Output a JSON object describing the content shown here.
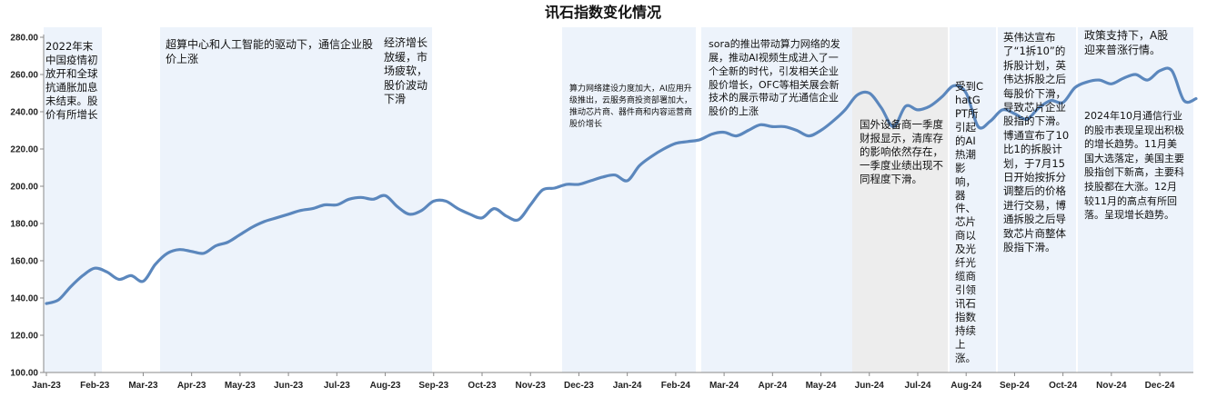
{
  "chart_data": {
    "type": "line",
    "title": "讯石指数变化情况",
    "xlabel": "",
    "ylabel": "",
    "ylim": [
      100,
      280
    ],
    "yticks": [
      "100.00",
      "120.00",
      "140.00",
      "160.00",
      "180.00",
      "200.00",
      "220.00",
      "240.00",
      "260.00",
      "280.00"
    ],
    "xticks": [
      "Jan-23",
      "Feb-23",
      "Mar-23",
      "Apr-23",
      "May-23",
      "Jun-23",
      "Jul-23",
      "Aug-23",
      "Sep-23",
      "Oct-23",
      "Nov-23",
      "Dec-23",
      "Jan-24",
      "Feb-24",
      "Mar-24",
      "Apr-24",
      "May-24",
      "Jun-24",
      "Jul-24",
      "Aug-24",
      "Sep-24",
      "Oct-24",
      "Nov-24",
      "Dec-24"
    ],
    "grid": false,
    "legend": "none",
    "series": [
      {
        "color": "#5b87bd",
        "x": [
          0,
          0.25,
          0.5,
          0.75,
          1,
          1.25,
          1.5,
          1.75,
          2,
          2.25,
          2.5,
          2.75,
          3,
          3.25,
          3.5,
          3.75,
          4,
          4.25,
          4.5,
          4.75,
          5,
          5.25,
          5.5,
          5.75,
          6,
          6.25,
          6.5,
          6.75,
          7,
          7.25,
          7.5,
          7.75,
          8,
          8.25,
          8.5,
          8.75,
          9,
          9.25,
          9.5,
          9.75,
          10,
          10.25,
          10.5,
          10.75,
          11,
          11.25,
          11.5,
          11.75,
          12,
          12.25,
          12.5,
          12.75,
          13,
          13.25,
          13.5,
          13.75,
          14,
          14.25,
          14.5,
          14.75,
          15,
          15.25,
          15.5,
          15.75,
          16,
          16.25,
          16.5,
          16.75,
          17,
          17.25,
          17.5,
          17.75,
          18,
          18.25,
          18.5,
          18.75,
          19,
          19.25,
          19.5,
          19.75,
          20,
          20.25,
          20.5,
          20.75,
          21,
          21.25,
          21.5,
          21.75,
          22,
          22.25,
          22.5,
          22.75,
          23,
          23.25,
          23.5,
          23.75
        ],
        "values": [
          137,
          139,
          146,
          152,
          156,
          154,
          150,
          152,
          149,
          158,
          164,
          166,
          165,
          164,
          168,
          170,
          174,
          178,
          181,
          183,
          185,
          187,
          188,
          190,
          190,
          193,
          194,
          193,
          195,
          189,
          185,
          187,
          192,
          192,
          188,
          185,
          183,
          188,
          184,
          182,
          190,
          198,
          199,
          201,
          201,
          203,
          205,
          206,
          203,
          211,
          216,
          220,
          223,
          224,
          225,
          228,
          229,
          227,
          230,
          233,
          232,
          232,
          230,
          227,
          230,
          235,
          241,
          249,
          250,
          242,
          232,
          243,
          241,
          243,
          248,
          254,
          250,
          232,
          235,
          241,
          239,
          236,
          242,
          246,
          245,
          253,
          256,
          257,
          255,
          258,
          260,
          257,
          262,
          262,
          246,
          247
        ]
      }
    ],
    "annotations": [
      {
        "id": "a1",
        "text": "2022年末中国疫情初放开和全球抗通胀加息未结束。股价有所增长"
      },
      {
        "id": "a2",
        "text": "超算中心和人工智能的驱动下，通信企业股价上涨"
      },
      {
        "id": "a3",
        "text": "经济增长放缓，市场疲软，股价波动下滑"
      },
      {
        "id": "a4",
        "text": "算力网络建设力度加大，AI应用升级推出，云服务商投资部署加大，推动芯片商、器件商和内容运营商股价增长"
      },
      {
        "id": "a5",
        "text": "sora的推出带动算力网络的发展，推动AI视频生成进入了一个全新的时代，引发相关企业股价增长，OFC等相关展会新技术的展示带动了光通信企业股价的上涨"
      },
      {
        "id": "a6",
        "text": "国外设备商一季度财报显示，清库存的影响依然存在，一季度业绩出现不同程度下滑。"
      },
      {
        "id": "a7",
        "text": "受到ChatGPT所引起的AI热潮影响，器件、芯片商以及光纤光缆商引领讯石指数持续上涨。"
      },
      {
        "id": "a8",
        "text": "英伟达宣布了“1拆10”的拆股计划，英伟达拆股之后每股价下滑，导致芯片企业股指的下滑。博通宣布了10比1的拆股计划，于7月15日开始按拆分调整后的价格进行交易，博通拆股之后导致芯片商整体股指下滑。"
      },
      {
        "id": "a9",
        "text": "政策支持下，A股迎来普涨行情。"
      },
      {
        "id": "a10",
        "text": "2024年10月通信行业的股市表现呈现出积极的增长趋势。11月美国大选落定，美国主要股指创下新高，主要科技股都在大涨。12月较11月的高点有所回落。呈现增长趋势。"
      }
    ]
  }
}
